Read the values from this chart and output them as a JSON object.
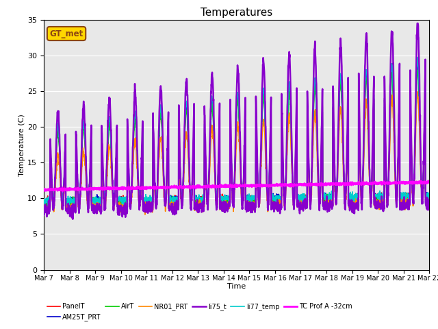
{
  "title": "Temperatures",
  "xlabel": "Time",
  "ylabel": "Temperature (C)",
  "ylim": [
    0,
    35
  ],
  "background_color": "#e8e8e8",
  "annotation_text": "GT_met",
  "annotation_color": "#8B4513",
  "annotation_bg": "#FFD700",
  "series": [
    {
      "label": "PanelT",
      "color": "#ff0000",
      "lw": 1.2,
      "zorder": 4
    },
    {
      "label": "AM25T_PRT",
      "color": "#0000cc",
      "lw": 1.2,
      "zorder": 4
    },
    {
      "label": "AirT",
      "color": "#00cc00",
      "lw": 1.2,
      "zorder": 4
    },
    {
      "label": "NR01_PRT",
      "color": "#ff8800",
      "lw": 1.2,
      "zorder": 4
    },
    {
      "label": "li75_t",
      "color": "#8800cc",
      "lw": 1.8,
      "zorder": 5
    },
    {
      "label": "li77_temp",
      "color": "#00cccc",
      "lw": 1.2,
      "zorder": 4
    },
    {
      "label": "TC Prof A -32cm",
      "color": "#ff00ff",
      "lw": 2.0,
      "zorder": 6
    }
  ],
  "tick_labels": [
    "Mar 7",
    "Mar 8",
    "Mar 9",
    "Mar 10",
    "Mar 11",
    "Mar 12",
    "Mar 13",
    "Mar 14",
    "Mar 15",
    "Mar 16",
    "Mar 17",
    "Mar 18",
    "Mar 19",
    "Mar 20",
    "Mar 21",
    "Mar 22"
  ],
  "yticks": [
    0,
    5,
    10,
    15,
    20,
    25,
    30,
    35
  ],
  "n_days": 15,
  "pts_per_day": 144
}
